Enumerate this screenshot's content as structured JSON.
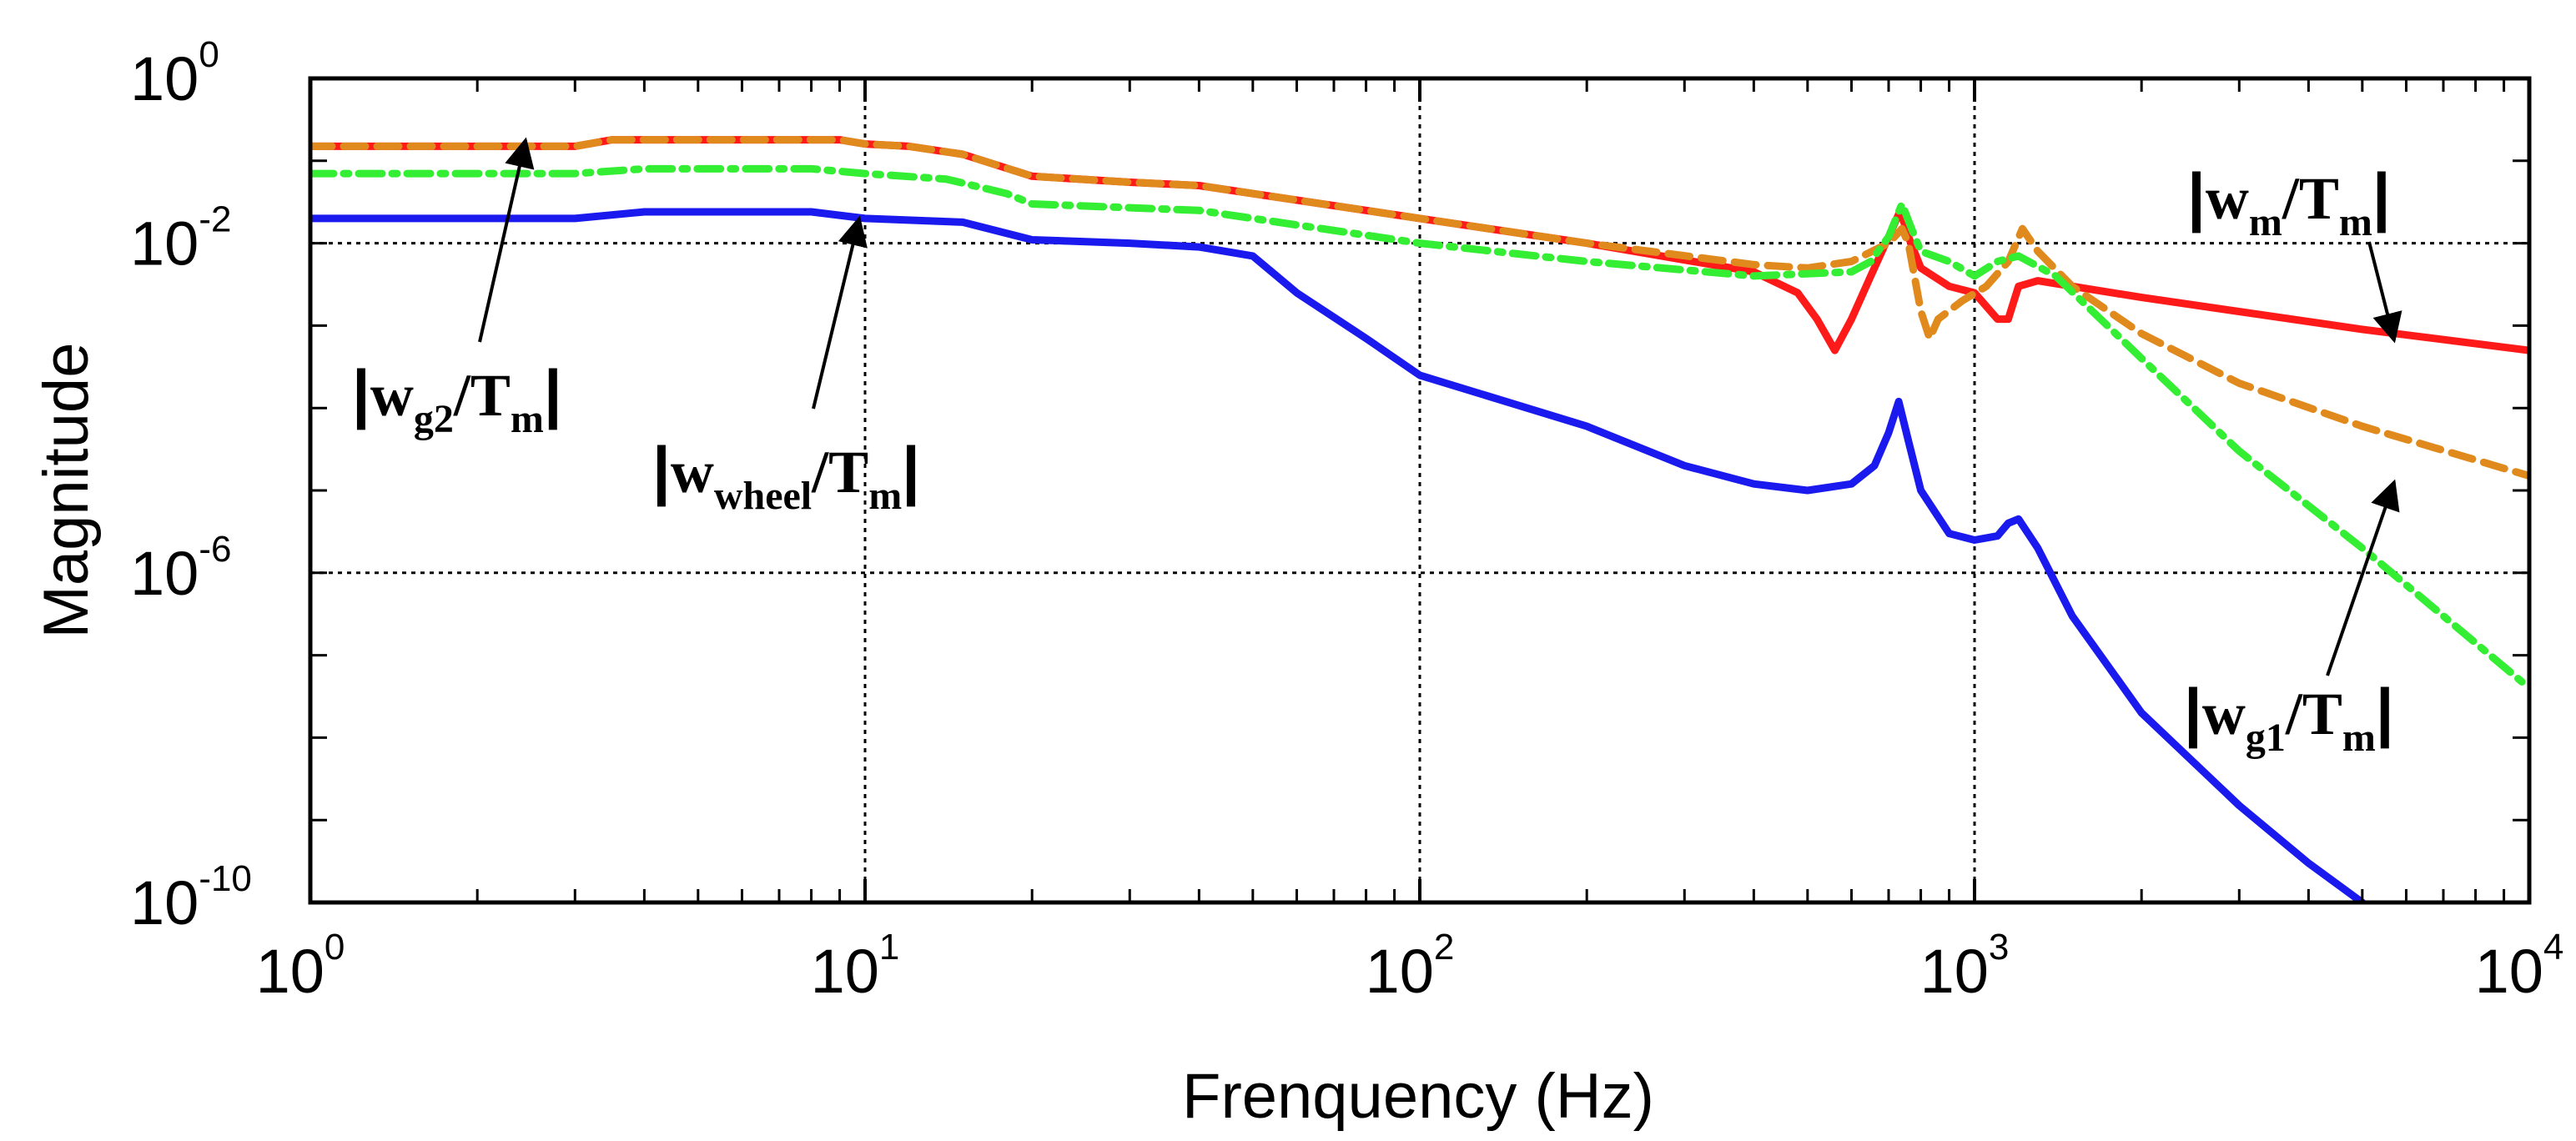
{
  "chart_data": {
    "type": "line",
    "title": "",
    "xlabel": "Frenquency (Hz)",
    "ylabel": "Magnitude",
    "xscale": "log",
    "yscale": "log",
    "xlim": [
      1,
      10000
    ],
    "ylim": [
      1e-10,
      1
    ],
    "grid": "dotted major lines at 10^1, 10^2, 10^3 (x) and 10^-2, 10^-6 (y)",
    "x_ticks": [
      {
        "base": "10",
        "exp": "0"
      },
      {
        "base": "10",
        "exp": "1"
      },
      {
        "base": "10",
        "exp": "2"
      },
      {
        "base": "10",
        "exp": "3"
      },
      {
        "base": "10",
        "exp": "4"
      }
    ],
    "y_ticks": [
      {
        "base": "10",
        "exp": "0"
      },
      {
        "base": "10",
        "exp": "-2"
      },
      {
        "base": "10",
        "exp": "-6"
      },
      {
        "base": "10",
        "exp": "-10"
      }
    ],
    "series": [
      {
        "name": "|w_m/T_m|",
        "color": "#ff1a1a",
        "dash": "solid",
        "points": [
          [
            1,
            0.15
          ],
          [
            3,
            0.15
          ],
          [
            3.5,
            0.18
          ],
          [
            9,
            0.18
          ],
          [
            10,
            0.16
          ],
          [
            12,
            0.15
          ],
          [
            15,
            0.12
          ],
          [
            20,
            0.065
          ],
          [
            30,
            0.055
          ],
          [
            40,
            0.05
          ],
          [
            100,
            0.02
          ],
          [
            200,
            0.01
          ],
          [
            400,
            0.0045
          ],
          [
            480,
            0.0025
          ],
          [
            520,
            0.0012
          ],
          [
            560,
            0.0005
          ],
          [
            600,
            0.0012
          ],
          [
            650,
            0.004
          ],
          [
            700,
            0.012
          ],
          [
            735,
            0.025
          ],
          [
            760,
            0.012
          ],
          [
            800,
            0.005
          ],
          [
            900,
            0.003
          ],
          [
            1000,
            0.0025
          ],
          [
            1100,
            0.0012
          ],
          [
            1150,
            0.0012
          ],
          [
            1200,
            0.003
          ],
          [
            1300,
            0.0035
          ],
          [
            2000,
            0.0022
          ],
          [
            5000,
            0.0009
          ],
          [
            10000,
            0.0005
          ]
        ]
      },
      {
        "name": "|w_g1/T_m|",
        "color": "#e08a1e",
        "dash": "dashed",
        "points": [
          [
            1,
            0.15
          ],
          [
            3,
            0.15
          ],
          [
            3.5,
            0.18
          ],
          [
            9,
            0.18
          ],
          [
            10,
            0.16
          ],
          [
            12,
            0.15
          ],
          [
            15,
            0.12
          ],
          [
            20,
            0.065
          ],
          [
            30,
            0.055
          ],
          [
            40,
            0.05
          ],
          [
            100,
            0.02
          ],
          [
            200,
            0.01
          ],
          [
            400,
            0.0055
          ],
          [
            500,
            0.005
          ],
          [
            600,
            0.006
          ],
          [
            700,
            0.01
          ],
          [
            740,
            0.015
          ],
          [
            760,
            0.01
          ],
          [
            800,
            0.0015
          ],
          [
            830,
            0.0007
          ],
          [
            860,
            0.0012
          ],
          [
            950,
            0.002
          ],
          [
            1050,
            0.003
          ],
          [
            1150,
            0.006
          ],
          [
            1220,
            0.015
          ],
          [
            1300,
            0.008
          ],
          [
            1500,
            0.003
          ],
          [
            2000,
            0.0008
          ],
          [
            3000,
            0.0002
          ],
          [
            5000,
            6e-05
          ],
          [
            10000,
            1.5e-05
          ]
        ]
      },
      {
        "name": "|w_g2/T_m|",
        "color": "#33ee33",
        "dash": "dashdot",
        "points": [
          [
            1,
            0.07
          ],
          [
            3,
            0.07
          ],
          [
            4,
            0.08
          ],
          [
            8,
            0.08
          ],
          [
            10,
            0.07
          ],
          [
            14,
            0.06
          ],
          [
            18,
            0.04
          ],
          [
            20,
            0.03
          ],
          [
            40,
            0.025
          ],
          [
            100,
            0.01
          ],
          [
            200,
            0.006
          ],
          [
            400,
            0.004
          ],
          [
            600,
            0.0045
          ],
          [
            650,
            0.006
          ],
          [
            700,
            0.012
          ],
          [
            740,
            0.03
          ],
          [
            770,
            0.015
          ],
          [
            800,
            0.008
          ],
          [
            900,
            0.006
          ],
          [
            1000,
            0.004
          ],
          [
            1100,
            0.006
          ],
          [
            1200,
            0.007
          ],
          [
            1400,
            0.004
          ],
          [
            2000,
            0.0004
          ],
          [
            3000,
            3e-05
          ],
          [
            5000,
            2e-06
          ],
          [
            10000,
            4e-08
          ]
        ]
      },
      {
        "name": "|w_wheel/T_m|",
        "color": "#1a1aee",
        "dash": "solid",
        "points": [
          [
            1,
            0.02
          ],
          [
            3,
            0.02
          ],
          [
            4,
            0.024
          ],
          [
            8,
            0.024
          ],
          [
            10,
            0.02
          ],
          [
            15,
            0.018
          ],
          [
            20,
            0.011
          ],
          [
            30,
            0.01
          ],
          [
            40,
            0.009
          ],
          [
            50,
            0.007
          ],
          [
            60,
            0.0025
          ],
          [
            80,
            0.0007
          ],
          [
            100,
            0.00025
          ],
          [
            200,
            6e-05
          ],
          [
            300,
            2e-05
          ],
          [
            400,
            1.2e-05
          ],
          [
            500,
            1e-05
          ],
          [
            600,
            1.2e-05
          ],
          [
            660,
            2e-05
          ],
          [
            700,
            5e-05
          ],
          [
            730,
            0.00012
          ],
          [
            760,
            4e-05
          ],
          [
            800,
            1e-05
          ],
          [
            900,
            3e-06
          ],
          [
            1000,
            2.5e-06
          ],
          [
            1100,
            2.8e-06
          ],
          [
            1150,
            4e-06
          ],
          [
            1200,
            4.5e-06
          ],
          [
            1300,
            2e-06
          ],
          [
            1500,
            3e-07
          ],
          [
            2000,
            2e-08
          ],
          [
            3000,
            1.5e-09
          ],
          [
            4000,
            3e-10
          ],
          [
            5000,
            1e-10
          ]
        ]
      }
    ],
    "annotations": [
      {
        "base": "w",
        "sub": "m",
        "den": "T",
        "den_sub": "m",
        "target": "|w_m/T_m|"
      },
      {
        "base": "w",
        "sub": "g1",
        "den": "T",
        "den_sub": "m",
        "target": "|w_g1/T_m|"
      },
      {
        "base": "w",
        "sub": "g2",
        "den": "T",
        "den_sub": "m",
        "target": "|w_g2/T_m|"
      },
      {
        "base": "w",
        "sub": "wheel",
        "den": "T",
        "den_sub": "m",
        "target": "|w_wheel/T_m|"
      }
    ]
  }
}
